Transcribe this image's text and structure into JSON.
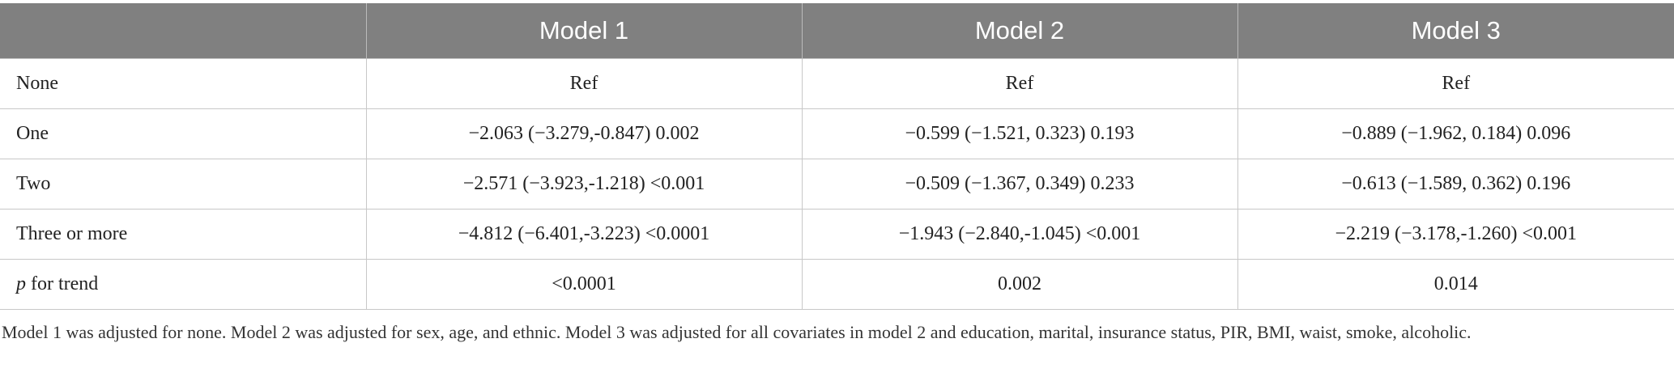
{
  "table": {
    "header": [
      "Model 1",
      "Model 2",
      "Model 3"
    ],
    "rows": [
      [
        "None",
        "Ref",
        "Ref",
        "Ref"
      ],
      [
        "One",
        "−2.063 (−3.279,-0.847) 0.002",
        "−0.599 (−1.521, 0.323) 0.193",
        "−0.889 (−1.962, 0.184) 0.096"
      ],
      [
        "Two",
        "−2.571 (−3.923,-1.218) <0.001",
        "−0.509 (−1.367, 0.349) 0.233",
        "−0.613 (−1.589, 0.362) 0.196"
      ],
      [
        "Three or more",
        "−4.812 (−6.401,-3.223) <0.0001",
        "−1.943 (−2.840,-1.045) <0.001",
        "−2.219 (−3.178,-1.260) <0.001"
      ],
      [
        "p for trend",
        "<0.0001",
        "0.002",
        "0.014"
      ]
    ]
  },
  "footnote": "Model 1 was adjusted for none. Model 2 was adjusted for sex, age, and ethnic. Model 3 was adjusted for all covariates in model 2 and education, marital, insurance status, PIR, BMI, waist, smoke, alcoholic."
}
